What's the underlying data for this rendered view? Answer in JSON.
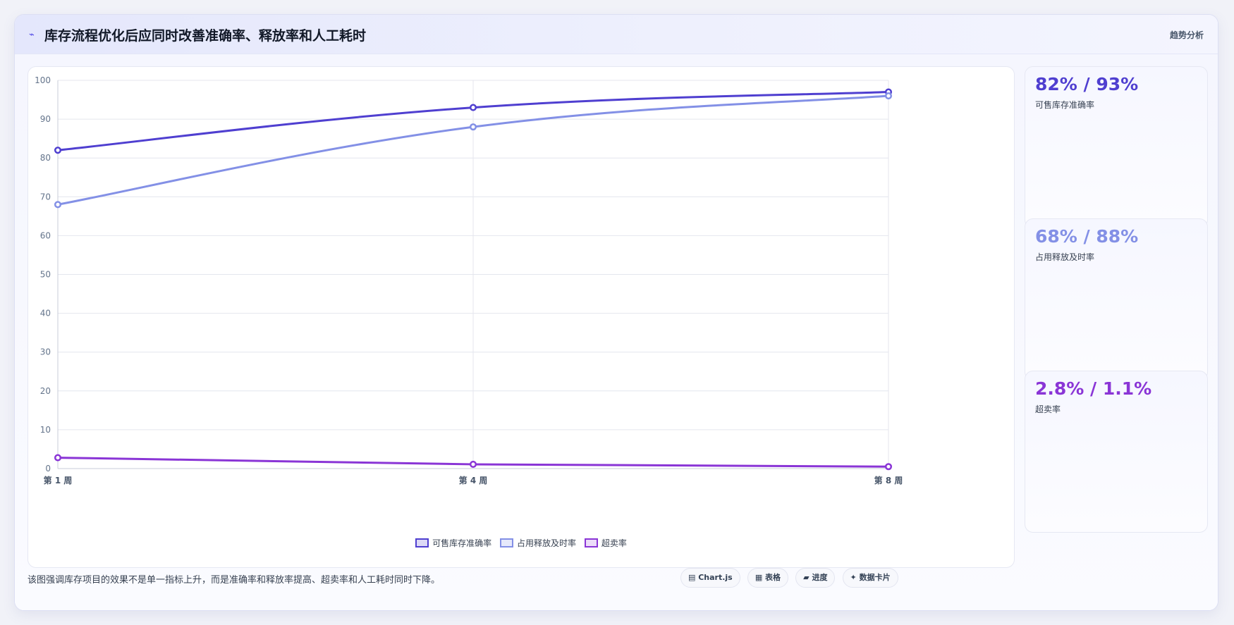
{
  "header": {
    "icon": "⌁",
    "title": "库存流程优化后应同时改善准确率、释放率和人工耗时",
    "tag": "趋势分析"
  },
  "chart_data": {
    "type": "line",
    "categories": [
      "第 1 周",
      "第 4 周",
      "第 8 周"
    ],
    "ylim": [
      0,
      100
    ],
    "y_ticks": [
      "0",
      "10",
      "20",
      "30",
      "40",
      "50",
      "60",
      "70",
      "80",
      "90",
      "100"
    ],
    "grid": true,
    "legend_position": "bottom",
    "series": [
      {
        "name": "可售库存准确率",
        "values": [
          82,
          93,
          97
        ],
        "color": "#4f3fd0"
      },
      {
        "name": "占用释放及时率",
        "values": [
          68,
          88,
          96
        ],
        "color": "#8390e6"
      },
      {
        "name": "超卖率",
        "values": [
          2.8,
          1.1,
          0.5
        ],
        "color": "#8a35d6"
      }
    ]
  },
  "kpis": [
    {
      "value": "82% / 93%",
      "label": "可售库存准确率",
      "color": "#4f3fd0"
    },
    {
      "value": "68% / 88%",
      "label": "占用释放及时率",
      "color": "#8390e6"
    },
    {
      "value": "2.8% / 1.1%",
      "label": "超卖率",
      "color": "#8a35d6"
    }
  ],
  "footer": {
    "note": "该图强调库存项目的效果不是单一指标上升，而是准确率和释放率提高、超卖率和人工耗时同时下降。",
    "pills": [
      "▤ Chart.js",
      "▦ 表格",
      "▰ 进度",
      "✦ 数据卡片"
    ]
  }
}
